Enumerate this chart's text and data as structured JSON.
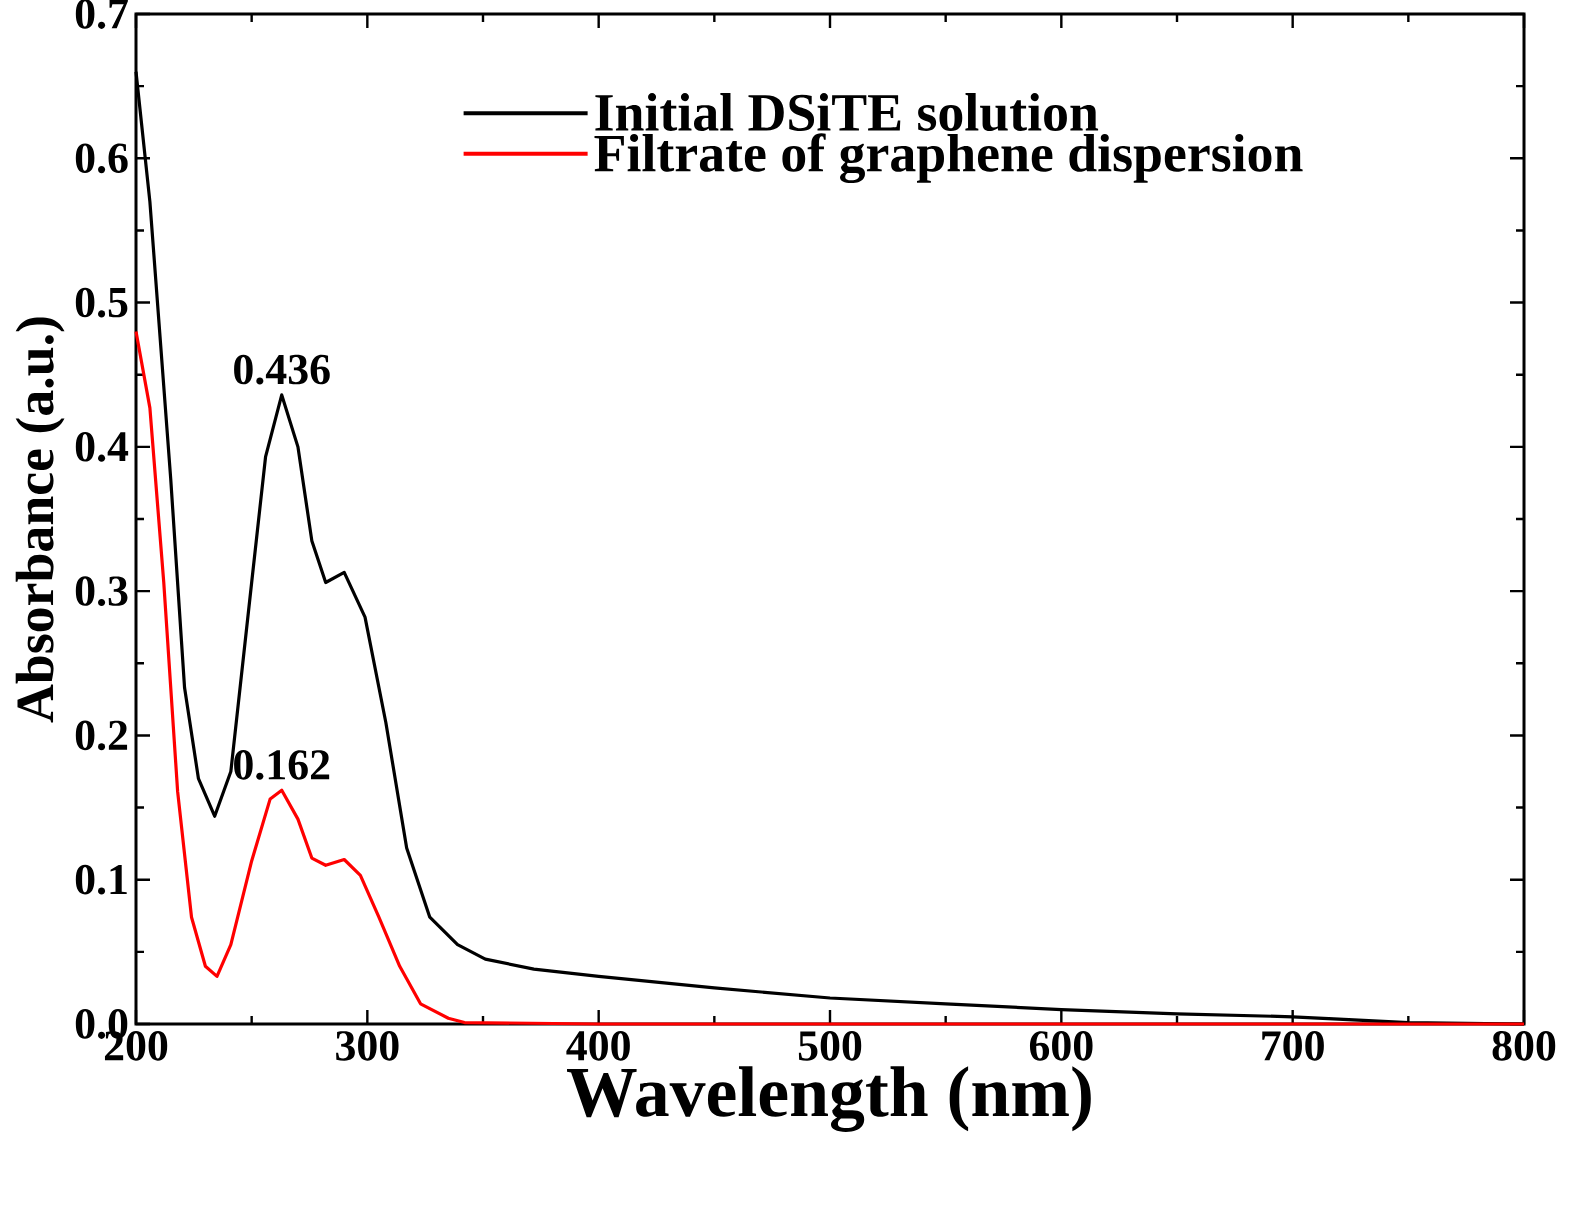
{
  "chart_data": {
    "type": "line",
    "xlabel": "Wavelength (nm)",
    "ylabel": "Absorbance (a.u.)",
    "xlim": [
      200,
      800
    ],
    "ylim": [
      0,
      0.7
    ],
    "xticks": [
      200,
      300,
      400,
      500,
      600,
      700,
      800
    ],
    "yticks": [
      {
        "value": 0,
        "label": "0.0"
      },
      0.1,
      0.2,
      0.3,
      0.4,
      0.5,
      0.6,
      0.7
    ],
    "legend": "top right",
    "grid": false,
    "marker": "none",
    "line_style": "solid",
    "series": [
      {
        "name": "Initial DSiTE solution",
        "color": "#000000",
        "x": [
          200,
          206,
          215,
          221,
          227,
          234,
          241,
          250,
          256,
          263,
          270,
          276,
          282,
          290,
          299,
          308,
          317,
          327,
          339,
          351,
          372,
          400,
          450,
          500,
          550,
          600,
          650,
          700,
          750,
          800
        ],
        "values": [
          0.66,
          0.57,
          0.378,
          0.233,
          0.17,
          0.144,
          0.175,
          0.306,
          0.393,
          0.436,
          0.4,
          0.335,
          0.306,
          0.313,
          0.282,
          0.209,
          0.122,
          0.074,
          0.055,
          0.045,
          0.038,
          0.033,
          0.025,
          0.018,
          0.014,
          0.01,
          0.007,
          0.005,
          0.001,
          0
        ]
      },
      {
        "name": "Filtrate of graphene dispersion",
        "color": "#ff0000",
        "x": [
          200,
          206,
          212,
          218,
          224,
          230,
          235,
          241,
          250,
          258,
          263,
          270,
          276,
          282,
          290,
          297,
          305,
          314,
          323,
          335,
          342,
          400,
          500,
          600,
          700,
          800
        ],
        "values": [
          0.48,
          0.427,
          0.306,
          0.161,
          0.074,
          0.04,
          0.033,
          0.055,
          0.113,
          0.156,
          0.162,
          0.142,
          0.115,
          0.11,
          0.114,
          0.103,
          0.074,
          0.04,
          0.014,
          0.004,
          0.001,
          0,
          0,
          0,
          0,
          0
        ]
      }
    ],
    "annotations": [
      {
        "text": "0.436",
        "x": 263,
        "y": 0.436
      },
      {
        "text": "0.162",
        "x": 263,
        "y": 0.162
      }
    ]
  }
}
